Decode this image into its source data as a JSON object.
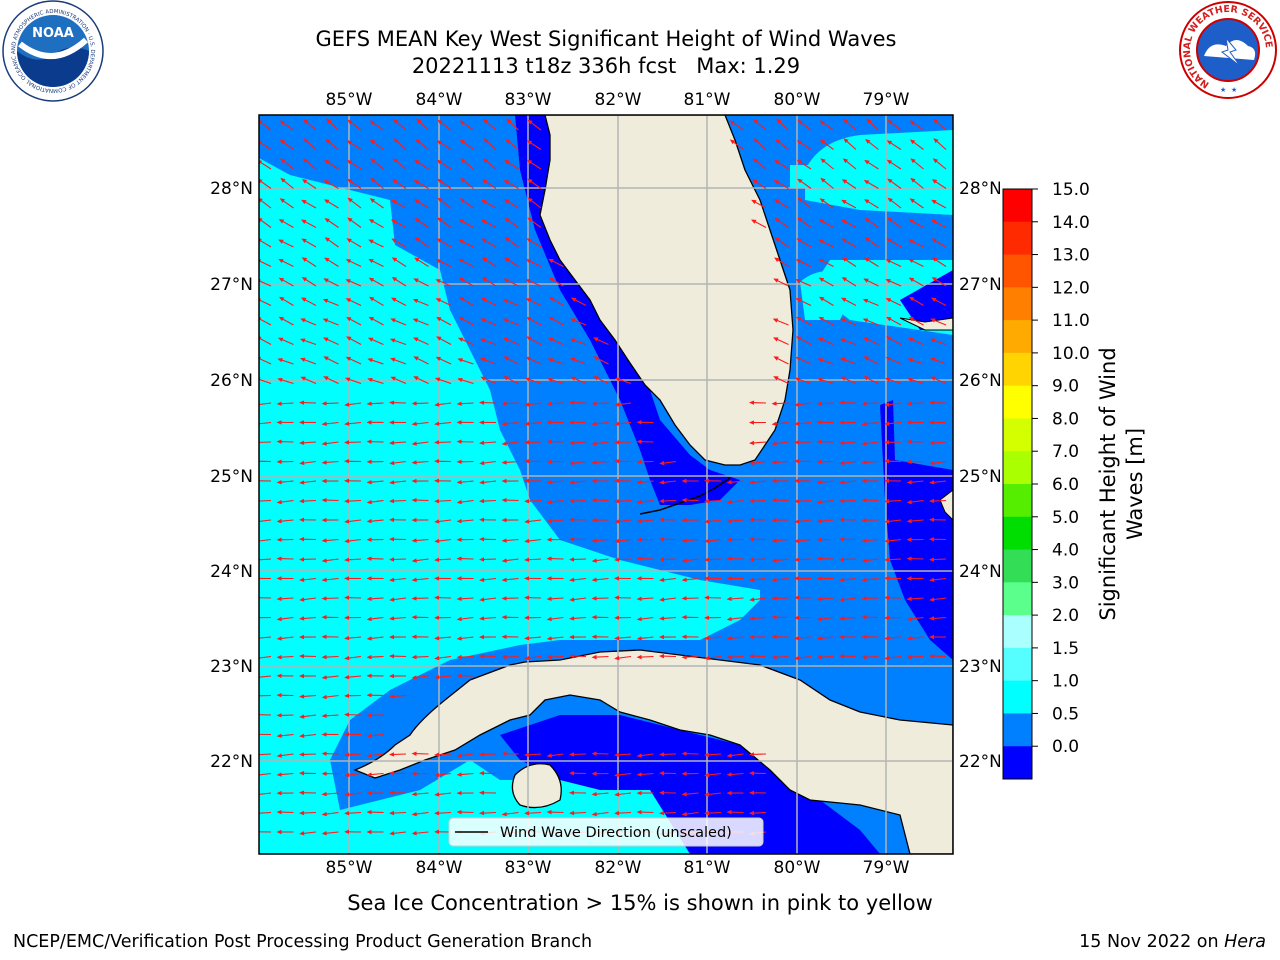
{
  "title": {
    "line1": "GEFS MEAN Key West Significant Height of Wind Waves",
    "line2": "20221113 t18z 336h fcst   Max: 1.29"
  },
  "map": {
    "longitude_ticks": [
      "85°W",
      "84°W",
      "83°W",
      "82°W",
      "81°W",
      "80°W",
      "79°W"
    ],
    "latitude_ticks": [
      "28°N",
      "27°N",
      "26°N",
      "25°N",
      "24°N",
      "23°N",
      "22°N"
    ],
    "legend_label": "Wind Wave Direction (unscaled)",
    "colors": {
      "land": "#efecdc",
      "arrow": "#ff1a1a",
      "grid": "#b4b4b4"
    },
    "dominant_arrow_direction": "west"
  },
  "colorbar": {
    "label": "Significant Height of Wind Waves [m]",
    "label_line1": "Significant Height of Wind",
    "label_line2": "Waves [m]",
    "ticks": [
      "15.0",
      "14.0",
      "13.0",
      "12.0",
      "11.0",
      "10.0",
      "9.0",
      "8.0",
      "7.0",
      "6.0",
      "5.0",
      "4.0",
      "3.0",
      "2.0",
      "1.5",
      "1.0",
      "0.5",
      "0.0"
    ],
    "colors_top_to_bottom": [
      "#ff0000",
      "#ff2a00",
      "#ff5500",
      "#ff7f00",
      "#ffaa00",
      "#ffd400",
      "#ffff00",
      "#d4ff00",
      "#aaff00",
      "#55ee00",
      "#00dd00",
      "#33dd55",
      "#5aff8c",
      "#aaffff",
      "#55ffff",
      "#00ffff",
      "#007fff",
      "#0000ff"
    ]
  },
  "subtitle": "Sea Ice Concentration > 15% is shown in pink to yellow",
  "footer": {
    "left": "NCEP/EMC/Verification Post Processing Product Generation Branch",
    "date": "15 Nov 2022 on ",
    "host": "Hera"
  },
  "logos": {
    "noaa_text": "NOAA",
    "noaa_ring": "NATIONAL OCEANIC AND ATMOSPHERIC ADMINISTRATION · U.S. DEPARTMENT OF COMMERCE",
    "nws_ring": "NATIONAL WEATHER SERVICE"
  }
}
